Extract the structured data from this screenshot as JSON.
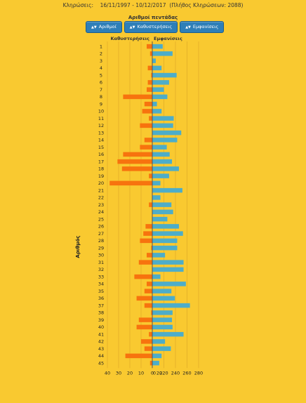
{
  "header": {
    "draws_label": "Κληρώσεις:",
    "date_range": "16/11/1997 - 10/12/2017",
    "draw_count_text": "(Πλήθος Κληρώσεων: 2088)"
  },
  "chart_title": "Αριθμοί πεντάδας",
  "sort_buttons": [
    {
      "label": "Αριθμοί",
      "icon": "sort-icon"
    },
    {
      "label": "Καθυστερήσεις",
      "icon": "sort-icon"
    },
    {
      "label": "Εμφανίσεις",
      "icon": "sort-icon"
    }
  ],
  "chart_data": {
    "type": "bar",
    "orientation": "horizontal",
    "title": "Αριθμοί πεντάδας",
    "ylabel": "Αριθμός",
    "categories": [
      1,
      2,
      3,
      4,
      5,
      6,
      7,
      8,
      9,
      10,
      11,
      12,
      13,
      14,
      15,
      16,
      17,
      18,
      19,
      20,
      21,
      22,
      23,
      24,
      25,
      26,
      27,
      28,
      29,
      30,
      31,
      32,
      33,
      34,
      35,
      36,
      37,
      38,
      39,
      40,
      41,
      42,
      43,
      44,
      45
    ],
    "series": [
      {
        "name": "Καθυστερήσεις",
        "color": "#f7730e",
        "direction": "left",
        "axis_ticks": [
          40,
          30,
          20,
          10,
          0
        ],
        "xlim": [
          0,
          40
        ],
        "values": [
          5,
          2,
          0,
          4,
          1,
          4,
          5,
          26,
          7,
          9,
          3,
          11,
          0,
          7,
          11,
          26,
          31,
          27,
          3,
          38,
          0,
          0,
          3,
          0,
          0,
          6,
          8,
          11,
          1,
          5,
          12,
          0,
          16,
          5,
          7,
          14,
          7,
          1,
          12,
          14,
          3,
          10,
          7,
          24,
          2
        ]
      },
      {
        "name": "Εμφανίσεις",
        "color": "#4dadc9",
        "direction": "right",
        "axis_ticks": [
          0,
          20,
          220,
          240,
          260,
          280
        ],
        "xlim": [
          200,
          280
        ],
        "values": [
          218,
          235,
          206,
          216,
          242,
          229,
          220,
          226,
          208,
          216,
          237,
          236,
          250,
          243,
          225,
          230,
          234,
          246,
          229,
          214,
          252,
          214,
          233,
          236,
          226,
          246,
          253,
          243,
          243,
          222,
          254,
          254,
          214,
          258,
          233,
          239,
          265,
          235,
          234,
          235,
          254,
          222,
          232,
          216,
          212
        ]
      }
    ],
    "grid": true,
    "legend": "top"
  }
}
